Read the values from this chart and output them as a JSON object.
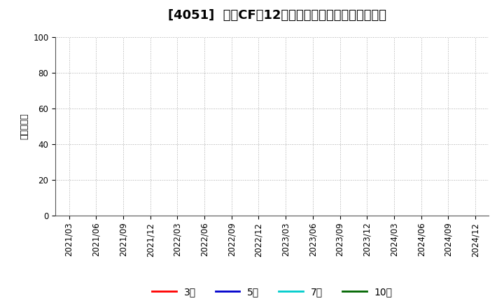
{
  "title": "[4051]  投資CFの12か月移動合計の標準偏差の推移",
  "ylabel": "（百万円）",
  "ylim": [
    0,
    100
  ],
  "yticks": [
    0,
    20,
    40,
    60,
    80,
    100
  ],
  "xtick_labels": [
    "2021/03",
    "2021/06",
    "2021/09",
    "2021/12",
    "2022/03",
    "2022/06",
    "2022/09",
    "2022/12",
    "2023/03",
    "2023/06",
    "2023/09",
    "2023/12",
    "2024/03",
    "2024/06",
    "2024/09",
    "2024/12"
  ],
  "legend_entries": [
    {
      "label": "3年",
      "color": "#ff0000"
    },
    {
      "label": "5年",
      "color": "#0000cc"
    },
    {
      "label": "7年",
      "color": "#00cccc"
    },
    {
      "label": "10年",
      "color": "#006600"
    }
  ],
  "background_color": "#ffffff",
  "grid_color": "#aaaaaa",
  "title_fontsize": 13,
  "axis_fontsize": 8.5,
  "ylabel_fontsize": 9
}
